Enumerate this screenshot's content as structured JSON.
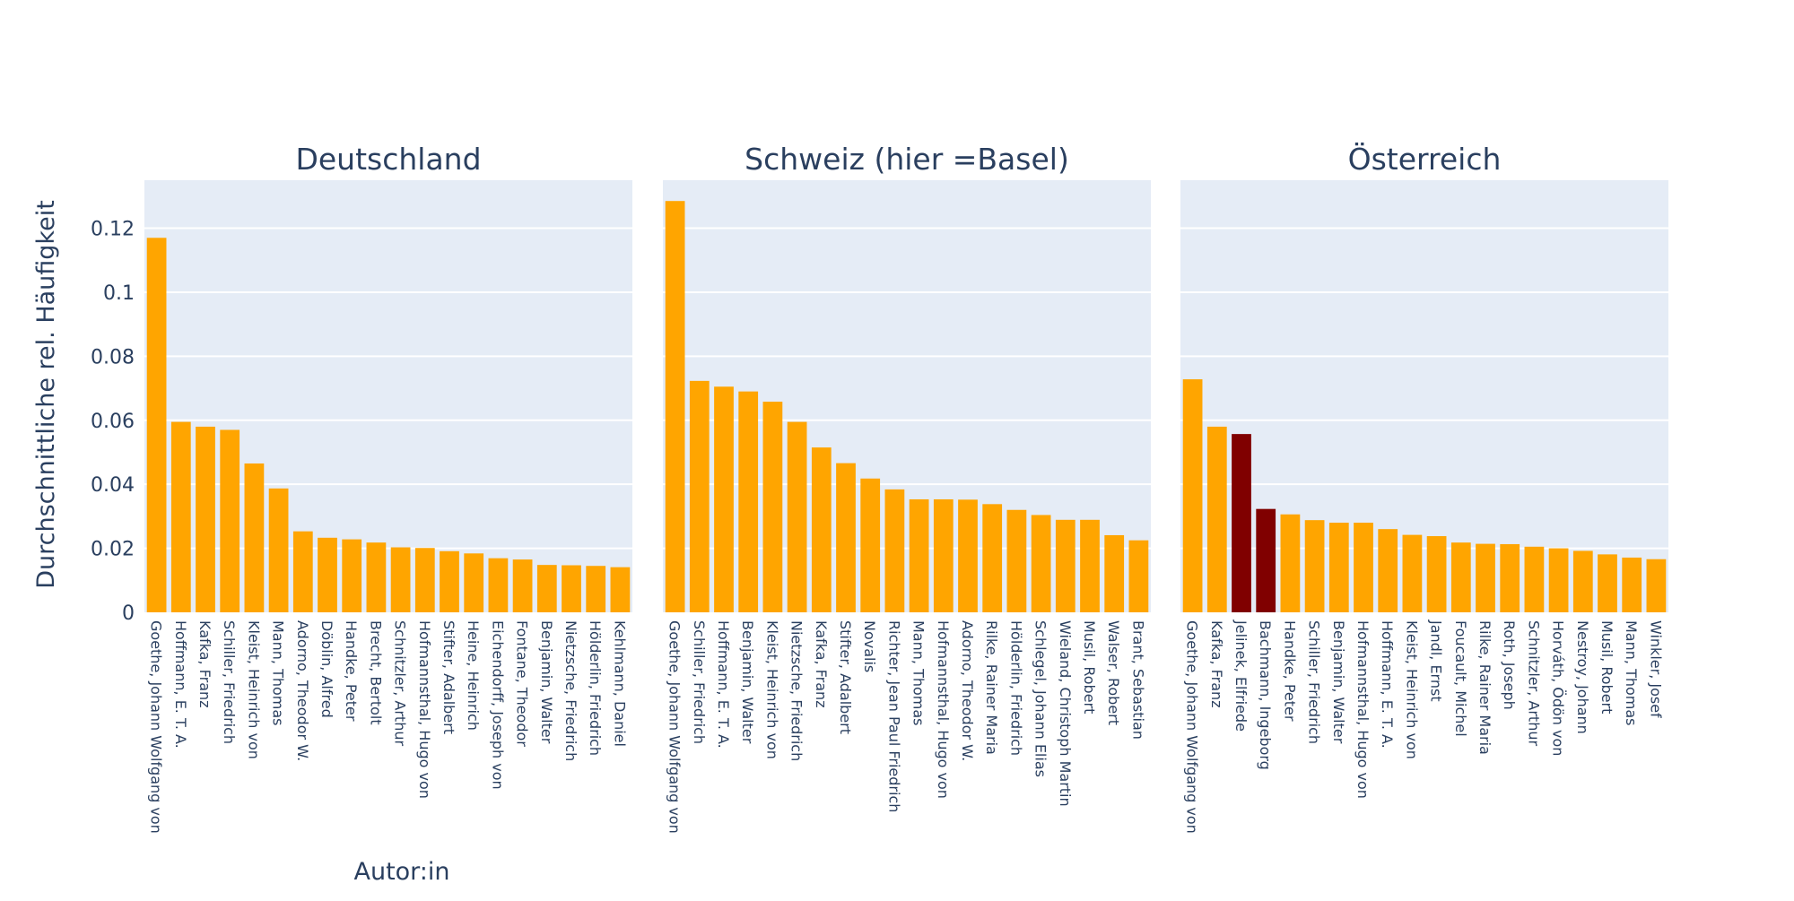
{
  "chart_data": {
    "type": "bar",
    "ylabel": "Durchschnittliche rel. Häufigkeit",
    "xlabel": "Autor:in",
    "ylim": [
      0,
      0.135
    ],
    "yticks": [
      0,
      0.02,
      0.04,
      0.06,
      0.08,
      0.1,
      0.12
    ],
    "ytick_labels": [
      "0",
      "0.02",
      "0.04",
      "0.06",
      "0.08",
      "0.1",
      "0.12"
    ],
    "grid": true,
    "colors": {
      "bar": "#FFA500",
      "highlight": "#800000",
      "plot_bg": "#E5ECF6",
      "grid": "#FFFFFF",
      "text": "#2A3F5F"
    },
    "panels": [
      {
        "title": "Deutschland",
        "categories": [
          "Goethe, Johann Wolfgang von",
          "Hoffmann, E. T. A.",
          "Kafka, Franz",
          "Schiller, Friedrich",
          "Kleist, Heinrich von",
          "Mann, Thomas",
          "Adorno, Theodor W.",
          "Döblin, Alfred",
          "Handke, Peter",
          "Brecht, Bertolt",
          "Schnitzler, Arthur",
          "Hofmannsthal, Hugo von",
          "Stifter, Adalbert",
          "Heine, Heinrich",
          "Eichendorff, Joseph von",
          "Fontane, Theodor",
          "Benjamin, Walter",
          "Nietzsche, Friedrich",
          "Hölderlin, Friedrich",
          "Kehlmann, Daniel"
        ],
        "values": [
          0.117,
          0.0595,
          0.058,
          0.057,
          0.0465,
          0.0387,
          0.0253,
          0.0233,
          0.0228,
          0.0218,
          0.0203,
          0.0201,
          0.0191,
          0.0184,
          0.0169,
          0.0165,
          0.0148,
          0.0147,
          0.0145,
          0.0141
        ],
        "highlight": [
          false,
          false,
          false,
          false,
          false,
          false,
          false,
          false,
          false,
          false,
          false,
          false,
          false,
          false,
          false,
          false,
          false,
          false,
          false,
          false
        ]
      },
      {
        "title": "Schweiz (hier =Basel)",
        "categories": [
          "Goethe, Johann Wolfgang von",
          "Schiller, Friedrich",
          "Hoffmann, E. T. A.",
          "Benjamin, Walter",
          "Kleist, Heinrich von",
          "Nietzsche, Friedrich",
          "Kafka, Franz",
          "Stifter, Adalbert",
          "Novalis",
          "Richter, Jean Paul Friedrich",
          "Mann, Thomas",
          "Hofmannsthal, Hugo von",
          "Adorno, Theodor W.",
          "Rilke, Rainer Maria",
          "Hölderlin, Friedrich",
          "Schlegel, Johann Elias",
          "Wieland, Christoph Martin",
          "Musil, Robert",
          "Walser, Robert",
          "Brant, Sebastian"
        ],
        "values": [
          0.1285,
          0.0723,
          0.0705,
          0.069,
          0.0658,
          0.0595,
          0.0515,
          0.0466,
          0.0418,
          0.0384,
          0.0353,
          0.0353,
          0.0352,
          0.0338,
          0.032,
          0.0304,
          0.0289,
          0.0289,
          0.0241,
          0.0225
        ],
        "highlight": [
          false,
          false,
          false,
          false,
          false,
          false,
          false,
          false,
          false,
          false,
          false,
          false,
          false,
          false,
          false,
          false,
          false,
          false,
          false,
          false
        ]
      },
      {
        "title": "Österreich",
        "categories": [
          "Goethe, Johann Wolfgang von",
          "Kafka, Franz",
          "Jelinek, Elfriede",
          "Bachmann, Ingeborg",
          "Handke, Peter",
          "Schiller, Friedrich",
          "Benjamin, Walter",
          "Hofmannsthal, Hugo von",
          "Hoffmann, E. T. A.",
          "Kleist, Heinrich von",
          "Jandl, Ernst",
          "Foucault, Michel",
          "Rilke, Rainer Maria",
          "Roth, Joseph",
          "Schnitzler, Arthur",
          "Horváth, Ödön von",
          "Nestroy, Johann",
          "Musil, Robert",
          "Mann, Thomas",
          "Winkler, Josef"
        ],
        "values": [
          0.0728,
          0.058,
          0.0557,
          0.0323,
          0.0306,
          0.0288,
          0.028,
          0.028,
          0.026,
          0.0242,
          0.0238,
          0.0218,
          0.0214,
          0.0213,
          0.0205,
          0.02,
          0.0192,
          0.0181,
          0.0171,
          0.0166
        ],
        "highlight": [
          false,
          false,
          true,
          true,
          false,
          false,
          false,
          false,
          false,
          false,
          false,
          false,
          false,
          false,
          false,
          false,
          false,
          false,
          false,
          false
        ]
      }
    ]
  }
}
